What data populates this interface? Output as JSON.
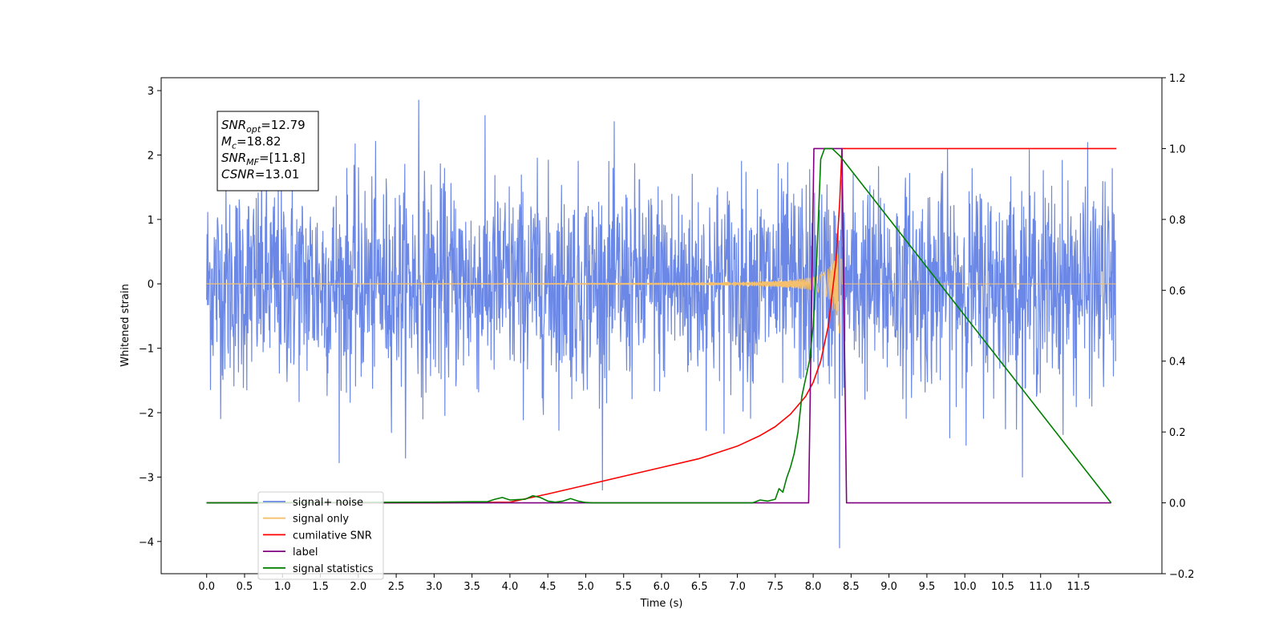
{
  "chart_data": {
    "type": "line",
    "xlabel": "Time (s)",
    "ylabel": "Whitened strain",
    "xlim": [
      -0.6,
      12.6
    ],
    "ylim": [
      -4.5,
      3.2
    ],
    "y2lim": [
      -0.2,
      1.2
    ],
    "x_ticks": [
      0.0,
      0.5,
      1.0,
      1.5,
      2.0,
      2.5,
      3.0,
      3.5,
      4.0,
      4.5,
      5.0,
      5.5,
      6.0,
      6.5,
      7.0,
      7.5,
      8.0,
      8.5,
      9.0,
      9.5,
      10.0,
      10.5,
      11.0,
      11.5
    ],
    "x_tick_labels": [
      "0.0",
      "0.5",
      "1.0",
      "1.5",
      "2.0",
      "2.5",
      "3.0",
      "3.5",
      "4.0",
      "4.5",
      "5.0",
      "5.5",
      "6.0",
      "6.5",
      "7.0",
      "7.5",
      "8.0",
      "8.5",
      "9.0",
      "9.5",
      "10.0",
      "10.5",
      "11.0",
      "11.5"
    ],
    "y_ticks": [
      3,
      2,
      1,
      0,
      -1,
      -2,
      -3,
      -4
    ],
    "y_tick_labels": [
      "3",
      "2",
      "1",
      "0",
      "−1",
      "−2",
      "−3",
      "−4"
    ],
    "y2_ticks": [
      1.2,
      1.0,
      0.8,
      0.6,
      0.4,
      0.2,
      0.0,
      -0.2
    ],
    "y2_tick_labels": [
      "1.2",
      "1.0",
      "0.8",
      "0.6",
      "0.4",
      "0.2",
      "0.0",
      "−0.2"
    ],
    "grid": false,
    "legend_position": "bottom-left",
    "annotation": {
      "lines": [
        {
          "main": "SNR",
          "sub": "opt",
          "rest": "=12.79"
        },
        {
          "main": "M",
          "sub": "c",
          "rest": "=18.82"
        },
        {
          "main": "SNR",
          "sub": "MF",
          "rest": "=[11.8]"
        },
        {
          "main": "CSNR",
          "sub": "",
          "rest": "=13.01"
        }
      ]
    },
    "series": [
      {
        "name": "signal+ noise",
        "color": "#6b88e6",
        "axis": "left",
        "kind": "noise",
        "t_start": 0.0,
        "t_end": 11.99,
        "typical_envelope": 1.3,
        "max": 2.85,
        "min": -4.1
      },
      {
        "name": "signal only",
        "color": "#f5c06e",
        "axis": "left",
        "kind": "chirp",
        "t_start": 0.0,
        "t_end": 11.99,
        "merger_time": 8.38,
        "peak_amplitude": 1.45
      },
      {
        "name": "cumilative SNR",
        "color": "#ff0000",
        "axis": "right",
        "x": [
          0.0,
          3.0,
          4.0,
          4.5,
          5.0,
          5.5,
          6.0,
          6.5,
          7.0,
          7.3,
          7.5,
          7.7,
          7.9,
          8.0,
          8.1,
          8.2,
          8.3,
          8.35,
          8.38,
          12.0
        ],
        "y": [
          0.0,
          0.0,
          0.002,
          0.025,
          0.05,
          0.075,
          0.1,
          0.125,
          0.16,
          0.19,
          0.215,
          0.25,
          0.3,
          0.34,
          0.4,
          0.5,
          0.68,
          0.85,
          1.0,
          1.0
        ]
      },
      {
        "name": "label",
        "color": "#800080",
        "axis": "right",
        "x": [
          0.0,
          7.94,
          8.01,
          8.38,
          8.44,
          11.93
        ],
        "y": [
          0.0,
          0.0,
          1.0,
          1.0,
          0.0,
          0.0
        ]
      },
      {
        "name": "signal statistics",
        "color": "#008000",
        "axis": "right",
        "x": [
          0.0,
          3.0,
          3.5,
          3.7,
          3.8,
          3.9,
          4.0,
          4.2,
          4.3,
          4.4,
          4.5,
          4.6,
          4.7,
          4.8,
          4.9,
          5.0,
          5.1,
          6.0,
          7.0,
          7.2,
          7.3,
          7.4,
          7.5,
          7.55,
          7.6,
          7.65,
          7.7,
          7.75,
          7.8,
          7.85,
          7.9,
          7.95,
          8.0,
          8.05,
          8.1,
          8.15,
          8.2,
          8.25,
          8.3,
          8.35,
          11.93
        ],
        "y": [
          0.0,
          0.002,
          0.003,
          0.003,
          0.01,
          0.015,
          0.008,
          0.01,
          0.02,
          0.015,
          0.005,
          0.002,
          0.005,
          0.012,
          0.005,
          0.001,
          0.0,
          0.0,
          0.0,
          0.0,
          0.008,
          0.005,
          0.01,
          0.04,
          0.03,
          0.07,
          0.1,
          0.14,
          0.2,
          0.3,
          0.35,
          0.4,
          0.5,
          0.7,
          0.97,
          1.0,
          1.0,
          1.0,
          0.99,
          0.98,
          0.0
        ]
      }
    ]
  }
}
